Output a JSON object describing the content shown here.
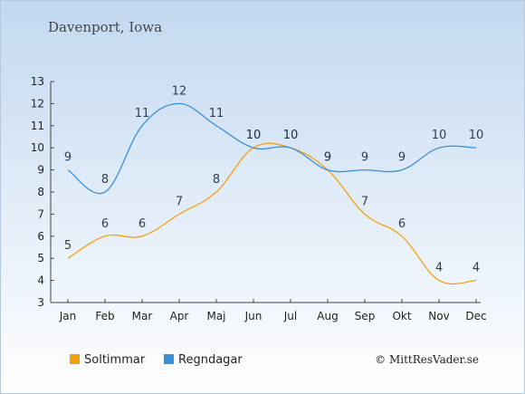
{
  "header": {
    "title": "Davenport, Iowa"
  },
  "footer": {
    "credit": "© MittResVader.se"
  },
  "chart_data": {
    "type": "line",
    "categories": [
      "Jan",
      "Feb",
      "Mar",
      "Apr",
      "Maj",
      "Jun",
      "Jul",
      "Aug",
      "Sep",
      "Okt",
      "Nov",
      "Dec"
    ],
    "series": [
      {
        "name": "Soltimmar",
        "color": "#f5a00f",
        "values": [
          5,
          6,
          6,
          7,
          8,
          10,
          10,
          9,
          7,
          6,
          4,
          4
        ]
      },
      {
        "name": "Regndagar",
        "color": "#3a8fdb",
        "values": [
          9,
          8,
          11,
          12,
          11,
          10,
          10,
          9,
          9,
          9,
          10,
          10
        ]
      }
    ],
    "ylim": [
      3,
      13
    ],
    "yticks": [
      3,
      4,
      5,
      6,
      7,
      8,
      9,
      10,
      11,
      12,
      13
    ],
    "grid": false,
    "legend": "bottom-left"
  }
}
